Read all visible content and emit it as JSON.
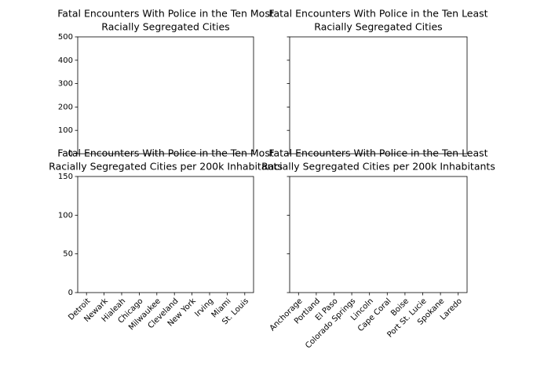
{
  "chart_data": [
    {
      "type": "bar",
      "title": [
        "Fatal Encounters With Police in the Ten Most",
        "Racially Segregated Cities"
      ],
      "ylim": [
        0,
        500
      ],
      "yticks": [
        0,
        100,
        200,
        300,
        400,
        500
      ],
      "ytick_labels": true
    },
    {
      "type": "bar",
      "title": [
        "Fatal Encounters With Police in the Ten Least",
        "Racially Segregated Cities"
      ],
      "ylim": [
        0,
        500
      ],
      "yticks": [
        0,
        100,
        200,
        300,
        400,
        500
      ],
      "ytick_labels": false
    },
    {
      "type": "bar",
      "title": [
        "Fatal Encounters With Police in the Ten Most",
        "Racially Segregated Cities per 200k Inhabitants"
      ],
      "categories": [
        "Detroit",
        "Newark",
        "Hialeah",
        "Chicago",
        "Milwaukee",
        "Cleveland",
        "New York",
        "Irving",
        "Miami",
        "St. Louis"
      ],
      "ylim": [
        0,
        150
      ],
      "yticks": [
        0,
        50,
        100,
        150
      ],
      "ytick_labels": true
    },
    {
      "type": "bar",
      "title": [
        "Fatal Encounters With Police in the Ten Least",
        "Racially Segregated Cities per 200k Inhabitants"
      ],
      "categories": [
        "Anchorage",
        "Portland",
        "El Paso",
        "Colorado Springs",
        "Lincoln",
        "Cape Coral",
        "Boise",
        "Port St. Lucie",
        "Spokane",
        "Laredo"
      ],
      "ylim": [
        0,
        150
      ],
      "yticks": [
        0,
        50,
        100,
        150
      ],
      "ytick_labels": false
    }
  ]
}
